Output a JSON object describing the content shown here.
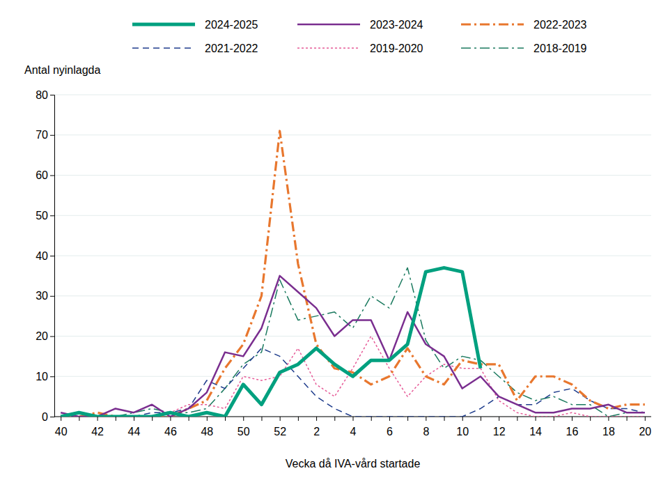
{
  "chart_data": {
    "type": "line",
    "y_label": "Antal nyinlagda",
    "x_label": "Vecka då IVA-vård startade",
    "categories": [
      "40",
      null,
      "42",
      null,
      "44",
      null,
      "46",
      null,
      "48",
      null,
      "50",
      null,
      "52",
      null,
      "2",
      null,
      "4",
      null,
      "6",
      null,
      "8",
      null,
      "10",
      null,
      "12",
      null,
      "14",
      null,
      "16",
      null,
      "18",
      null,
      "20"
    ],
    "ylim": [
      0,
      80
    ],
    "yticks": [
      0,
      10,
      20,
      30,
      40,
      50,
      60,
      70,
      80
    ],
    "grid": true,
    "legend": "top",
    "series": [
      {
        "name": "2024-2025",
        "color": "#00a07f",
        "line_style": "solid",
        "values": [
          0,
          1,
          0,
          0,
          0,
          0,
          1,
          0,
          1,
          0,
          8,
          3,
          11,
          13,
          17,
          13,
          10,
          14,
          14,
          18,
          36,
          37,
          36,
          12,
          null,
          null,
          null,
          null,
          null,
          null,
          null,
          null,
          null
        ]
      },
      {
        "name": "2023-2024",
        "color": "#7a2e8f",
        "line_style": "solid",
        "values": [
          1,
          0,
          0,
          2,
          1,
          3,
          0,
          2,
          6,
          16,
          15,
          22,
          35,
          31,
          27,
          20,
          24,
          24,
          14,
          26,
          18,
          15,
          7,
          10,
          5,
          3,
          1,
          1,
          2,
          2,
          3,
          1,
          1
        ]
      },
      {
        "name": "2022-2023",
        "color": "#e8772e",
        "line_style": "dashdot",
        "values": [
          0,
          0,
          1,
          0,
          0,
          0,
          0,
          2,
          4,
          12,
          18,
          30,
          71,
          38,
          18,
          12,
          11,
          8,
          10,
          17,
          10,
          8,
          14,
          13,
          13,
          4,
          10,
          10,
          8,
          4,
          2,
          3,
          3
        ]
      },
      {
        "name": "2021-2022",
        "color": "#1f3d8c",
        "line_style": "dashed",
        "values": [
          0,
          0,
          0,
          0,
          0,
          1,
          1,
          2,
          9,
          7,
          12,
          17,
          15,
          10,
          5,
          2,
          0,
          0,
          0,
          0,
          0,
          0,
          0,
          2,
          5,
          3,
          3,
          6,
          7,
          4,
          2,
          2,
          1
        ]
      },
      {
        "name": "2019-2020",
        "color": "#e65a97",
        "line_style": "dotted",
        "values": [
          0,
          0,
          0,
          0,
          0,
          0,
          1,
          3,
          3,
          2,
          10,
          9,
          10,
          17,
          8,
          5,
          12,
          20,
          12,
          5,
          10,
          13,
          12,
          12,
          4,
          1,
          0,
          0,
          1,
          0,
          0,
          0,
          0
        ]
      },
      {
        "name": "2018-2019",
        "color": "#1b7a5f",
        "line_style": "dashdot",
        "values": [
          0,
          0,
          0,
          0,
          1,
          2,
          1,
          1,
          2,
          7,
          13,
          16,
          34,
          24,
          25,
          26,
          22,
          30,
          27,
          37,
          19,
          12,
          15,
          14,
          10,
          6,
          4,
          5,
          3,
          3,
          0,
          1,
          1
        ]
      }
    ]
  }
}
